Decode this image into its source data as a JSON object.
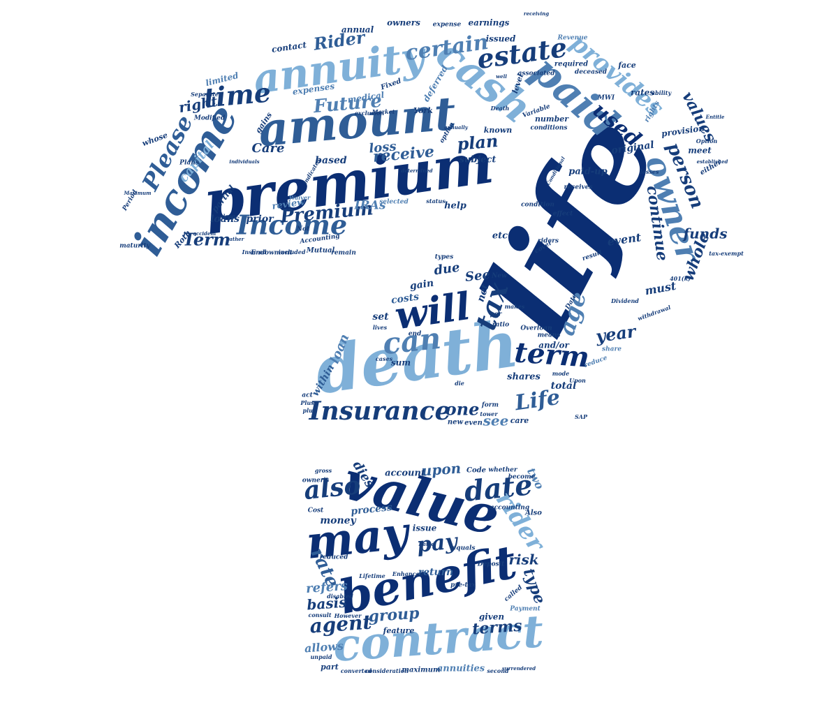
{
  "title": "Insurance question mark word cloud",
  "palette": {
    "navy": "#0b2e73",
    "dark": "#163d7a",
    "mid": "#2f5d96",
    "steel": "#4f7fb2",
    "light": "#7fb0d8"
  },
  "words": {
    "life": "life",
    "premium": "premium",
    "death": "death",
    "amount": "amount",
    "annuity": "annuity",
    "income": "income",
    "cash": "cash",
    "paid": "paid",
    "owner": "owner",
    "will": "will",
    "can": "can",
    "tax": "tax",
    "term": "term",
    "age": "age",
    "estate": "estate",
    "certain": "certain",
    "provides": "provides",
    "time": "time",
    "Please": "Please",
    "Income": "Income",
    "Premium": "Premium",
    "Future": "Future",
    "plan": "plan",
    "used": "used",
    "person": "person",
    "values": "values",
    "Insurance": "Insurance",
    "Life": "Life",
    "one": "one",
    "see": "see",
    "year": "year",
    "continue": "continue",
    "whole": "whole",
    "funds": "funds",
    "Term": "Term",
    "receive": "receive",
    "loss": "loss",
    "Care": "Care",
    "right": "right",
    "Rider": "Rider",
    "capital": "capital",
    "value": "value",
    "may": "may",
    "benefit": "benefit",
    "contract": "contract",
    "also": "also",
    "date": "date",
    "rider": "rider",
    "pay": "pay",
    "agent": "agent",
    "terms": "terms",
    "group": "group",
    "rate": "rate",
    "risk": "risk",
    "type": "type",
    "upon": "upon",
    "dies": "dies",
    "basis": "basis",
    "refers": "refers",
    "allows": "allows",
    "process": "process",
    "return": "return",
    "account": "account",
    "money": "money",
    "issue": "issue",
    "given": "given",
    "two": "two",
    "annuities": "annuities",
    "maximum": "maximum",
    "feature": "feature",
    "part": "part",
    "loan": "loan",
    "within": "within",
    "set": "set",
    "costs": "costs",
    "gain": "gain",
    "net": "net",
    "due": "due",
    "See": "See",
    "total": "total",
    "shares": "shares",
    "care": "care",
    "sum": "sum",
    "event": "event",
    "must": "must",
    "etc": "etc",
    "help": "help",
    "prior": "prior",
    "review": "review",
    "IRAs": "IRAs",
    "based": "based",
    "subject": "subject",
    "loans": "loans",
    "partial": "partial",
    "medical": "medical",
    "deferred": "deferred",
    "expenses": "expenses",
    "limited": "limited",
    "whose": "whose",
    "gains": "gains",
    "original": "original",
    "provision": "provision",
    "paid_up": "paid-up",
    "annual": "annual",
    "owners": "owners",
    "earnings": "earnings",
    "contact": "contact",
    "issued": "issued",
    "expense": "expense",
    "face": "face",
    "rates": "rates",
    "York": "York",
    "number": "number",
    "conditions": "conditions",
    "associated": "associated",
    "deceased": "deceased",
    "required": "required",
    "level": "level",
    "Revenue": "Revenue",
    "known": "known",
    "option": "option",
    "meet": "meet",
    "either": "either",
    "Mutual": "Mutual",
    "Endowment": "Endowment",
    "included": "included",
    "remain": "remain",
    "and_or": "and/or",
    "new": "new",
    "even": "even",
    "form": "form",
    "tower": "tower",
    "Accounting": "Accounting",
    "Roth": "Roth",
    "maturity": "maturity",
    "Plans": "Plans",
    "Period": "Period",
    "Insured": "Insured",
    "Modified": "Modified",
    "Separate": "Separate",
    "selected": "selected",
    "status": "status",
    "converted": "converted",
    "consideration": "consideration",
    "second": "second",
    "surrendered": "surrendered",
    "unpaid": "unpaid",
    "consult": "consult",
    "However": "However",
    "Payment": "Payment",
    "called": "called",
    "pre_tax": "pre-tax",
    "Deposit": "Deposit",
    "Enhanced": "Enhanced",
    "Lifetime": "Lifetime",
    "reduced": "reduced",
    "Cost": "Cost",
    "Code": "Code",
    "whether": "whether",
    "become": "become",
    "accounting": "accounting",
    "Also": "Also",
    "Rated": "Rated",
    "equals": "equals",
    "owner_s": "owner's",
    "gross": "gross",
    "disabled": "disabled",
    "Death": "Death",
    "Fixed": "Fixed",
    "Variable": "Variable",
    "cover": "cover",
    "result": "result",
    "Dividend": "Dividend",
    "withdrawal": "withdrawal",
    "reduce": "reduce",
    "share": "share",
    "mode": "mode",
    "Upon": "Upon",
    "Overloan": "Overloan",
    "means": "means",
    "cases": "cases",
    "die": "die",
    "end": "end",
    "lives": "lives",
    "ratio": "ratio",
    "per": "per",
    "makes": "makes",
    "Date": "Date",
    "New": "New",
    "types": "types",
    "riders": "riders",
    "receives": "receives",
    "condition": "condition",
    "effect": "effect",
    "MWI": "MWI",
    "rights": "rights",
    "ability": "ability",
    "established": "established",
    "losses": "losses",
    "tax_exempt": "tax-exempt",
    "Option": "Option",
    "401k": "401(k)",
    "SAP": "SAP",
    "Plus": "Plus",
    "act": "act",
    "plus": "plus",
    "Waiver": "Waiver",
    "exclusion": "exclusion",
    "Market": "Market",
    "Not": "Not",
    "individuals": "individuals",
    "accident": "accident",
    "rather": "rather",
    "along": "along",
    "indicates": "indicates",
    "Maximum": "Maximum",
    "determined": "determined",
    "Conditional": "Conditional",
    "annually": "annually",
    "well": "well",
    "receiving": "receiving",
    "Entitle": "Entitle"
  }
}
